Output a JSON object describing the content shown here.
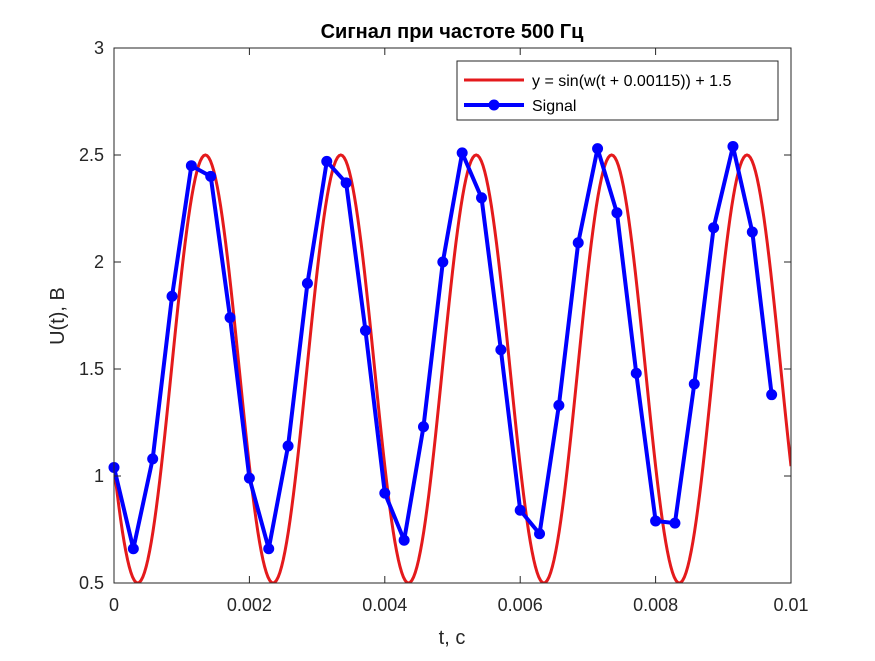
{
  "chart_data": {
    "type": "line",
    "title": "Сигнал при частоте 500 Гц",
    "xlabel": "t, c",
    "ylabel": "U(t), B",
    "xlim": [
      0,
      0.01
    ],
    "ylim": [
      0.5,
      3
    ],
    "x_ticks": [
      "0",
      "0.002",
      "0.004",
      "0.006",
      "0.008",
      "0.01"
    ],
    "y_ticks": [
      "0.5",
      "1",
      "1.5",
      "2",
      "2.5",
      "3"
    ],
    "x_tick_values": [
      0,
      0.002,
      0.004,
      0.006,
      0.008,
      0.01
    ],
    "y_tick_values": [
      0.5,
      1,
      1.5,
      2,
      2.5,
      3
    ],
    "grid": false,
    "legend_position": "top-right",
    "series": [
      {
        "name": "y = sin(w(t + 0.00115)) + 1.5",
        "color": "#e41a1c",
        "style": "line",
        "function": {
          "amplitude": 1,
          "offset": 1.5,
          "frequency_hz": 500,
          "shift": 0.00115,
          "samples": 400
        }
      },
      {
        "name": "Signal",
        "color": "#0000ff",
        "style": "line-marker",
        "x": [
          0,
          0.0002857,
          0.0005714,
          0.0008571,
          0.0011429,
          0.0014286,
          0.0017143,
          0.002,
          0.0022857,
          0.0025714,
          0.0028571,
          0.0031429,
          0.0034286,
          0.0037143,
          0.004,
          0.0042857,
          0.0045714,
          0.0048571,
          0.0051429,
          0.0054286,
          0.0057143,
          0.006,
          0.0062857,
          0.0065714,
          0.0068571,
          0.0071429,
          0.0074286,
          0.0077143,
          0.008,
          0.0082857,
          0.0085714,
          0.0088571,
          0.0091429,
          0.0094286,
          0.0097143
        ],
        "y": [
          1.04,
          0.66,
          1.08,
          1.84,
          2.45,
          2.4,
          1.74,
          0.99,
          0.66,
          1.14,
          1.9,
          2.47,
          2.37,
          1.68,
          0.92,
          0.7,
          1.23,
          2.0,
          2.51,
          2.3,
          1.59,
          0.84,
          0.73,
          1.33,
          2.09,
          2.53,
          2.23,
          1.48,
          0.79,
          0.78,
          1.43,
          2.16,
          2.54,
          2.14,
          1.38
        ]
      }
    ]
  }
}
